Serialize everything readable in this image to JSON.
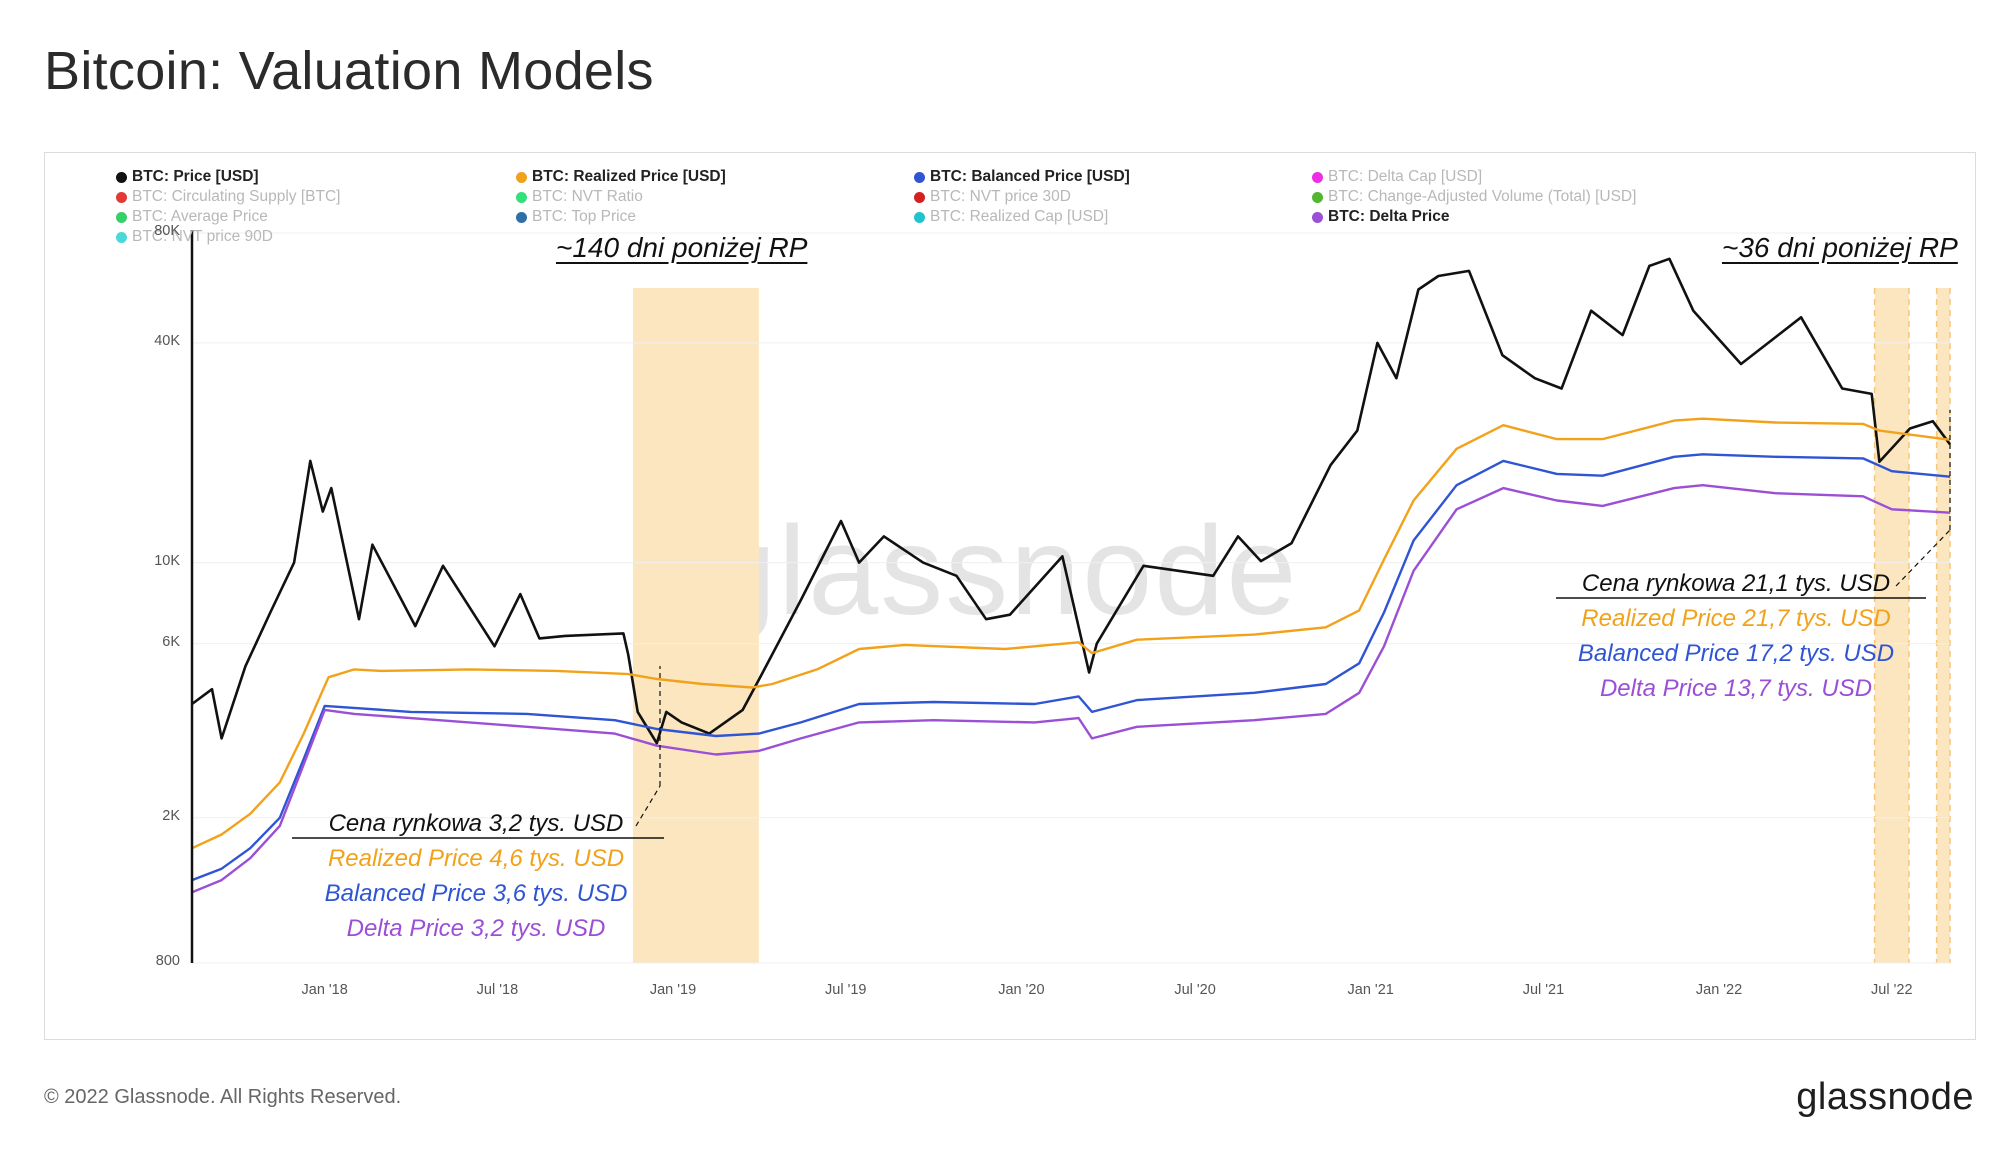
{
  "title": "Bitcoin: Valuation Models",
  "watermark": "glassnode",
  "footer": {
    "copyright": "© 2022 Glassnode. All Rights Reserved.",
    "logo": "glassnode"
  },
  "legend": [
    {
      "label": "BTC: Price [USD]",
      "color": "#111111",
      "active": true
    },
    {
      "label": "BTC: Realized Price [USD]",
      "color": "#f2a21a",
      "active": true
    },
    {
      "label": "BTC: Balanced Price [USD]",
      "color": "#2f55d4",
      "active": true
    },
    {
      "label": "BTC: Delta Cap [USD]",
      "color": "#ee2ee6",
      "active": false
    },
    {
      "label": "BTC: Circulating Supply [BTC]",
      "color": "#e53935",
      "active": false
    },
    {
      "label": "BTC: NVT Ratio",
      "color": "#33e07a",
      "active": false
    },
    {
      "label": "BTC: NVT price 30D",
      "color": "#d61f1f",
      "active": false
    },
    {
      "label": "BTC: Change-Adjusted Volume (Total) [USD]",
      "color": "#52b72d",
      "active": false
    },
    {
      "label": "BTC: Average Price",
      "color": "#35d06a",
      "active": false
    },
    {
      "label": "BTC: Top Price",
      "color": "#2e6fa8",
      "active": false
    },
    {
      "label": "BTC: Realized Cap [USD]",
      "color": "#1fc4cf",
      "active": false
    },
    {
      "label": "BTC: Delta Price",
      "color": "#9b4fd6",
      "active": true
    },
    {
      "label": "BTC: NVT price 90D",
      "color": "#49d9d9",
      "active": false
    }
  ],
  "annotations": {
    "left_header": "~140 dni poniżej RP",
    "right_header": "~36 dni poniżej RP",
    "left_box": [
      {
        "text": "Cena rynkowa 3,2 tys. USD",
        "color": "#111111"
      },
      {
        "text": "Realized Price 4,6 tys. USD",
        "color": "#f2a21a"
      },
      {
        "text": "Balanced Price 3,6 tys. USD",
        "color": "#2f55d4"
      },
      {
        "text": "Delta Price 3,2 tys. USD",
        "color": "#9b4fd6"
      }
    ],
    "right_box": [
      {
        "text": "Cena rynkowa 21,1 tys. USD",
        "color": "#111111"
      },
      {
        "text": "Realized Price 21,7 tys. USD",
        "color": "#f2a21a"
      },
      {
        "text": "Balanced Price 17,2 tys. USD",
        "color": "#2f55d4"
      },
      {
        "text": "Delta Price 13,7 tys. USD",
        "color": "#9b4fd6"
      }
    ]
  },
  "chart_data": {
    "type": "line",
    "y_scale": "log",
    "ylim": [
      800,
      80000
    ],
    "y_ticks": [
      {
        "value": 800,
        "label": "800"
      },
      {
        "value": 2000,
        "label": "2K"
      },
      {
        "value": 6000,
        "label": "6K"
      },
      {
        "value": 10000,
        "label": "10K"
      },
      {
        "value": 40000,
        "label": "40K"
      },
      {
        "value": 80000,
        "label": "80K"
      }
    ],
    "x_ticks": [
      {
        "date": "2018-01-01",
        "label": "Jan '18"
      },
      {
        "date": "2018-07-01",
        "label": "Jul '18"
      },
      {
        "date": "2019-01-01",
        "label": "Jan '19"
      },
      {
        "date": "2019-07-01",
        "label": "Jul '19"
      },
      {
        "date": "2020-01-01",
        "label": "Jan '20"
      },
      {
        "date": "2020-07-01",
        "label": "Jul '20"
      },
      {
        "date": "2021-01-01",
        "label": "Jan '21"
      },
      {
        "date": "2021-07-01",
        "label": "Jul '21"
      },
      {
        "date": "2022-01-01",
        "label": "Jan '22"
      },
      {
        "date": "2022-07-01",
        "label": "Jul '22"
      }
    ],
    "xlim": [
      "2017-08-15",
      "2022-08-31"
    ],
    "highlight_periods": [
      {
        "start": "2018-11-20",
        "end": "2019-04-01",
        "color": "#fbe6c0"
      },
      {
        "start": "2022-06-13",
        "end": "2022-07-19",
        "color": "#fbe6c0"
      },
      {
        "start": "2022-08-17",
        "end": "2022-08-31",
        "color": "#fbe6c0"
      }
    ],
    "series": [
      {
        "name": "BTC: Price [USD]",
        "color": "#111111",
        "points": [
          [
            "2017-08-15",
            4100
          ],
          [
            "2017-09-05",
            4500
          ],
          [
            "2017-09-15",
            3300
          ],
          [
            "2017-10-10",
            5200
          ],
          [
            "2017-11-05",
            7300
          ],
          [
            "2017-11-30",
            10000
          ],
          [
            "2017-12-17",
            19000
          ],
          [
            "2017-12-30",
            13800
          ],
          [
            "2018-01-08",
            16000
          ],
          [
            "2018-02-06",
            7000
          ],
          [
            "2018-02-20",
            11200
          ],
          [
            "2018-04-06",
            6700
          ],
          [
            "2018-05-05",
            9800
          ],
          [
            "2018-06-28",
            5900
          ],
          [
            "2018-07-25",
            8200
          ],
          [
            "2018-08-14",
            6200
          ],
          [
            "2018-09-10",
            6300
          ],
          [
            "2018-11-10",
            6400
          ],
          [
            "2018-11-15",
            5600
          ],
          [
            "2018-11-25",
            3900
          ],
          [
            "2018-12-15",
            3200
          ],
          [
            "2018-12-25",
            3900
          ],
          [
            "2019-01-10",
            3650
          ],
          [
            "2019-02-08",
            3400
          ],
          [
            "2019-03-15",
            3950
          ],
          [
            "2019-04-05",
            5000
          ],
          [
            "2019-05-15",
            7900
          ],
          [
            "2019-06-26",
            13000
          ],
          [
            "2019-07-15",
            10000
          ],
          [
            "2019-08-10",
            11800
          ],
          [
            "2019-09-20",
            10000
          ],
          [
            "2019-10-25",
            9200
          ],
          [
            "2019-11-25",
            7000
          ],
          [
            "2019-12-20",
            7200
          ],
          [
            "2020-02-13",
            10400
          ],
          [
            "2020-03-12",
            5000
          ],
          [
            "2020-03-20",
            6000
          ],
          [
            "2020-05-08",
            9800
          ],
          [
            "2020-07-20",
            9200
          ],
          [
            "2020-08-15",
            11800
          ],
          [
            "2020-09-08",
            10100
          ],
          [
            "2020-10-10",
            11300
          ],
          [
            "2020-11-20",
            18500
          ],
          [
            "2020-12-18",
            23000
          ],
          [
            "2021-01-08",
            40000
          ],
          [
            "2021-01-28",
            32000
          ],
          [
            "2021-02-20",
            56000
          ],
          [
            "2021-03-13",
            61000
          ],
          [
            "2021-04-14",
            63000
          ],
          [
            "2021-05-19",
            37000
          ],
          [
            "2021-06-22",
            32000
          ],
          [
            "2021-07-20",
            30000
          ],
          [
            "2021-08-20",
            49000
          ],
          [
            "2021-09-22",
            42000
          ],
          [
            "2021-10-20",
            65000
          ],
          [
            "2021-11-10",
            68000
          ],
          [
            "2021-12-05",
            49000
          ],
          [
            "2022-01-24",
            35000
          ],
          [
            "2022-03-28",
            47000
          ],
          [
            "2022-05-10",
            30000
          ],
          [
            "2022-06-10",
            29000
          ],
          [
            "2022-06-18",
            18900
          ],
          [
            "2022-07-20",
            23300
          ],
          [
            "2022-08-13",
            24400
          ],
          [
            "2022-08-31",
            21100
          ]
        ]
      },
      {
        "name": "BTC: Realized Price [USD]",
        "color": "#f2a21a",
        "points": [
          [
            "2017-08-15",
            1650
          ],
          [
            "2017-09-15",
            1800
          ],
          [
            "2017-10-15",
            2050
          ],
          [
            "2017-11-15",
            2500
          ],
          [
            "2017-12-10",
            3400
          ],
          [
            "2018-01-05",
            4850
          ],
          [
            "2018-02-01",
            5100
          ],
          [
            "2018-03-01",
            5050
          ],
          [
            "2018-06-01",
            5100
          ],
          [
            "2018-09-01",
            5050
          ],
          [
            "2018-11-15",
            4950
          ],
          [
            "2018-12-15",
            4800
          ],
          [
            "2019-02-01",
            4650
          ],
          [
            "2019-03-25",
            4550
          ],
          [
            "2019-04-15",
            4650
          ],
          [
            "2019-06-01",
            5100
          ],
          [
            "2019-07-15",
            5800
          ],
          [
            "2019-09-01",
            5950
          ],
          [
            "2019-12-15",
            5800
          ],
          [
            "2020-03-01",
            6050
          ],
          [
            "2020-03-15",
            5650
          ],
          [
            "2020-05-01",
            6150
          ],
          [
            "2020-09-01",
            6350
          ],
          [
            "2020-11-15",
            6650
          ],
          [
            "2020-12-20",
            7400
          ],
          [
            "2021-01-15",
            10200
          ],
          [
            "2021-02-15",
            14800
          ],
          [
            "2021-04-01",
            20500
          ],
          [
            "2021-05-20",
            23800
          ],
          [
            "2021-07-15",
            21800
          ],
          [
            "2021-09-01",
            21800
          ],
          [
            "2021-11-15",
            24500
          ],
          [
            "2021-12-15",
            24800
          ],
          [
            "2022-03-01",
            24200
          ],
          [
            "2022-06-01",
            24000
          ],
          [
            "2022-06-18",
            23000
          ],
          [
            "2022-08-31",
            21700
          ]
        ]
      },
      {
        "name": "BTC: Balanced Price [USD]",
        "color": "#2f55d4",
        "points": [
          [
            "2017-08-15",
            1350
          ],
          [
            "2017-09-15",
            1450
          ],
          [
            "2017-10-15",
            1650
          ],
          [
            "2017-11-15",
            2000
          ],
          [
            "2017-12-10",
            2900
          ],
          [
            "2018-01-01",
            4050
          ],
          [
            "2018-02-01",
            4000
          ],
          [
            "2018-04-01",
            3900
          ],
          [
            "2018-08-01",
            3850
          ],
          [
            "2018-11-01",
            3700
          ],
          [
            "2018-12-15",
            3500
          ],
          [
            "2019-02-15",
            3350
          ],
          [
            "2019-04-01",
            3400
          ],
          [
            "2019-05-15",
            3650
          ],
          [
            "2019-07-15",
            4100
          ],
          [
            "2019-10-01",
            4150
          ],
          [
            "2020-01-15",
            4100
          ],
          [
            "2020-03-01",
            4300
          ],
          [
            "2020-03-15",
            3900
          ],
          [
            "2020-05-01",
            4200
          ],
          [
            "2020-09-01",
            4400
          ],
          [
            "2020-11-15",
            4650
          ],
          [
            "2020-12-20",
            5300
          ],
          [
            "2021-01-15",
            7300
          ],
          [
            "2021-02-15",
            11500
          ],
          [
            "2021-04-01",
            16300
          ],
          [
            "2021-05-20",
            19000
          ],
          [
            "2021-07-15",
            17500
          ],
          [
            "2021-09-01",
            17300
          ],
          [
            "2021-11-15",
            19500
          ],
          [
            "2021-12-15",
            19800
          ],
          [
            "2022-03-01",
            19500
          ],
          [
            "2022-06-01",
            19300
          ],
          [
            "2022-07-01",
            17800
          ],
          [
            "2022-08-31",
            17200
          ]
        ]
      },
      {
        "name": "BTC: Delta Price",
        "color": "#9b4fd6",
        "points": [
          [
            "2017-08-15",
            1250
          ],
          [
            "2017-09-15",
            1350
          ],
          [
            "2017-10-15",
            1550
          ],
          [
            "2017-11-15",
            1900
          ],
          [
            "2017-12-10",
            2800
          ],
          [
            "2018-01-01",
            3950
          ],
          [
            "2018-02-01",
            3850
          ],
          [
            "2018-05-01",
            3700
          ],
          [
            "2018-08-01",
            3550
          ],
          [
            "2018-11-01",
            3400
          ],
          [
            "2018-12-15",
            3150
          ],
          [
            "2019-02-15",
            2980
          ],
          [
            "2019-04-01",
            3050
          ],
          [
            "2019-05-15",
            3300
          ],
          [
            "2019-07-15",
            3650
          ],
          [
            "2019-10-01",
            3700
          ],
          [
            "2020-01-15",
            3650
          ],
          [
            "2020-03-01",
            3750
          ],
          [
            "2020-03-15",
            3300
          ],
          [
            "2020-05-01",
            3550
          ],
          [
            "2020-09-01",
            3700
          ],
          [
            "2020-11-15",
            3850
          ],
          [
            "2020-12-20",
            4400
          ],
          [
            "2021-01-15",
            5900
          ],
          [
            "2021-02-15",
            9500
          ],
          [
            "2021-04-01",
            14000
          ],
          [
            "2021-05-20",
            16000
          ],
          [
            "2021-07-15",
            14800
          ],
          [
            "2021-09-01",
            14300
          ],
          [
            "2021-11-15",
            16000
          ],
          [
            "2021-12-15",
            16300
          ],
          [
            "2022-03-01",
            15500
          ],
          [
            "2022-06-01",
            15200
          ],
          [
            "2022-07-01",
            14000
          ],
          [
            "2022-08-31",
            13700
          ]
        ]
      }
    ]
  }
}
